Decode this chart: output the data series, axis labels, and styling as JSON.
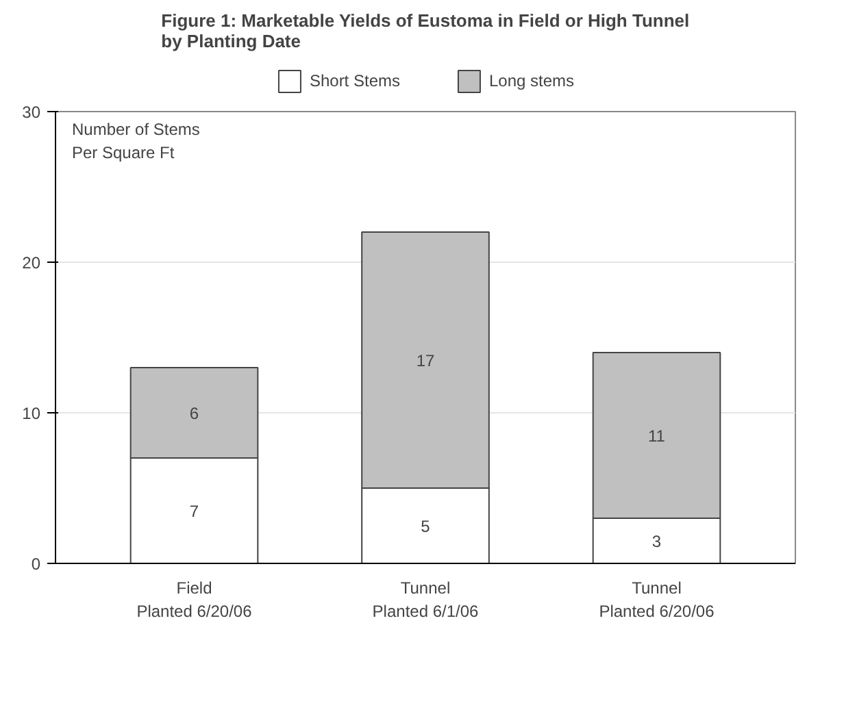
{
  "chart_data": {
    "type": "bar",
    "title": "Figure 1: Marketable Yields of Eustoma in Field or High Tunnel\nby  Planting Date",
    "ylabel": "Number of Stems\n Per Square Ft",
    "categories": [
      "Field\nPlanted 6/20/06",
      "Tunnel\nPlanted 6/1/06",
      "Tunnel\nPlanted 6/20/06"
    ],
    "stacked": true,
    "series": [
      {
        "name": "Short Stems",
        "color": "#ffffff",
        "values": [
          7,
          5,
          3
        ]
      },
      {
        "name": "Long stems",
        "color": "#c0c0c0",
        "values": [
          6,
          17,
          11
        ]
      }
    ],
    "ylim": [
      0,
      30
    ],
    "yticks": [
      0,
      10,
      20,
      30
    ],
    "grid": "y",
    "legend": "top",
    "data_labels": true
  }
}
